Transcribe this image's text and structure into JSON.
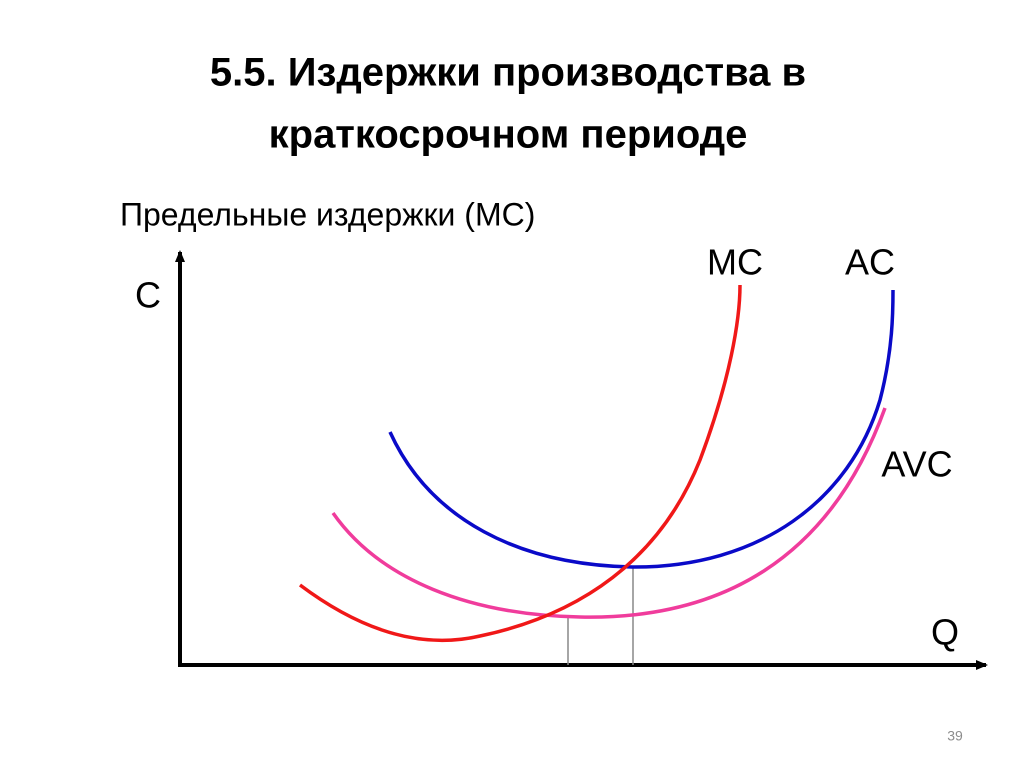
{
  "header": {
    "title_lines": [
      "5.5. Издержки производства в",
      "краткосрочном периоде"
    ],
    "subtitle": "Предельные издержки (МС)"
  },
  "diagram": {
    "y_axis_label": "C",
    "x_axis_label": "Q",
    "curves": [
      {
        "label": "MC"
      },
      {
        "label": "AC"
      },
      {
        "label": "AVC"
      }
    ]
  },
  "footer": {
    "page_number": "39"
  }
}
